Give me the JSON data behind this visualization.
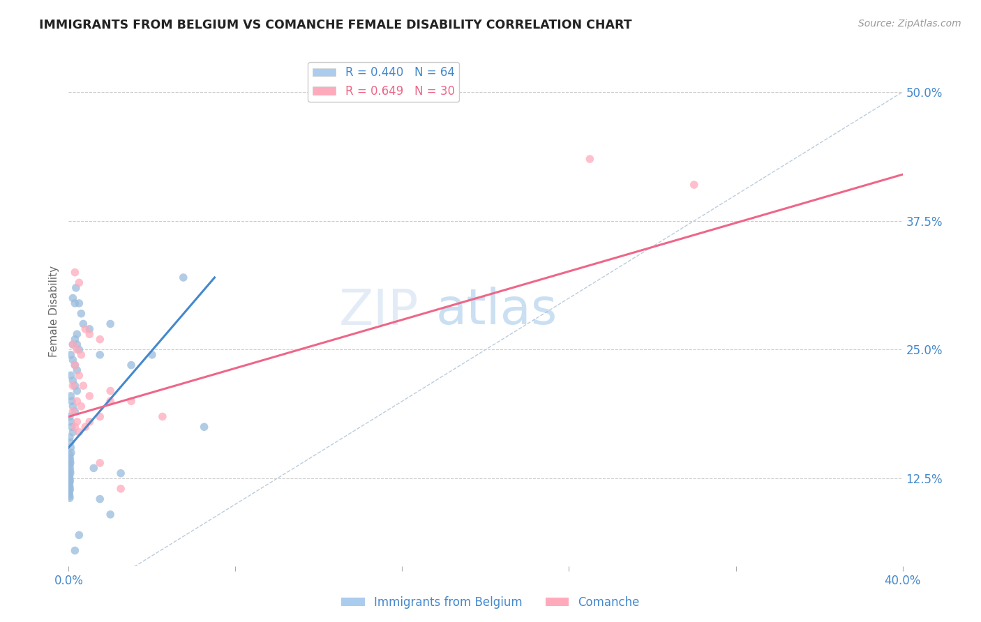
{
  "title": "IMMIGRANTS FROM BELGIUM VS COMANCHE FEMALE DISABILITY CORRELATION CHART",
  "source": "Source: ZipAtlas.com",
  "ylabel": "Female Disability",
  "right_yticks": [
    0.125,
    0.25,
    0.375,
    0.5
  ],
  "right_ytick_labels": [
    "12.5%",
    "25.0%",
    "37.5%",
    "50.0%"
  ],
  "legend1_label": "R = 0.440   N = 64",
  "legend2_label": "R = 0.649   N = 30",
  "legend_color1": "#aaccee",
  "legend_color2": "#ffaabb",
  "blue_color": "#99bbdd",
  "pink_color": "#ffaabb",
  "blue_line_color": "#4488cc",
  "pink_line_color": "#ee6688",
  "diagonal_color": "#bbccdd",
  "watermark_zip": "ZIP",
  "watermark_atlas": "atlas",
  "title_fontsize": 12.5,
  "axis_label_color": "#4488cc",
  "blue_scatter": [
    [
      0.2,
      0.3
    ],
    [
      0.3,
      0.295
    ],
    [
      0.35,
      0.31
    ],
    [
      0.4,
      0.265
    ],
    [
      0.5,
      0.295
    ],
    [
      0.6,
      0.285
    ],
    [
      0.7,
      0.275
    ],
    [
      0.2,
      0.255
    ],
    [
      0.3,
      0.26
    ],
    [
      0.4,
      0.255
    ],
    [
      0.5,
      0.25
    ],
    [
      0.1,
      0.245
    ],
    [
      0.2,
      0.24
    ],
    [
      0.3,
      0.235
    ],
    [
      0.4,
      0.23
    ],
    [
      0.1,
      0.225
    ],
    [
      0.2,
      0.22
    ],
    [
      0.3,
      0.215
    ],
    [
      0.4,
      0.21
    ],
    [
      0.1,
      0.205
    ],
    [
      0.15,
      0.2
    ],
    [
      0.2,
      0.195
    ],
    [
      0.3,
      0.19
    ],
    [
      0.05,
      0.185
    ],
    [
      0.1,
      0.18
    ],
    [
      0.15,
      0.175
    ],
    [
      0.2,
      0.17
    ],
    [
      0.05,
      0.165
    ],
    [
      0.08,
      0.16
    ],
    [
      0.1,
      0.155
    ],
    [
      0.12,
      0.15
    ],
    [
      0.05,
      0.148
    ],
    [
      0.06,
      0.145
    ],
    [
      0.07,
      0.142
    ],
    [
      0.08,
      0.14
    ],
    [
      0.05,
      0.138
    ],
    [
      0.06,
      0.135
    ],
    [
      0.07,
      0.132
    ],
    [
      0.08,
      0.13
    ],
    [
      0.03,
      0.128
    ],
    [
      0.04,
      0.126
    ],
    [
      0.05,
      0.124
    ],
    [
      0.06,
      0.122
    ],
    [
      0.03,
      0.12
    ],
    [
      0.04,
      0.118
    ],
    [
      0.05,
      0.116
    ],
    [
      0.06,
      0.114
    ],
    [
      0.02,
      0.112
    ],
    [
      0.03,
      0.11
    ],
    [
      0.04,
      0.108
    ],
    [
      0.05,
      0.106
    ],
    [
      1.0,
      0.27
    ],
    [
      1.5,
      0.245
    ],
    [
      2.0,
      0.275
    ],
    [
      3.0,
      0.235
    ],
    [
      4.0,
      0.245
    ],
    [
      5.5,
      0.32
    ],
    [
      6.5,
      0.175
    ],
    [
      1.2,
      0.135
    ],
    [
      2.5,
      0.13
    ],
    [
      1.5,
      0.105
    ],
    [
      2.0,
      0.09
    ],
    [
      0.5,
      0.07
    ],
    [
      0.3,
      0.055
    ]
  ],
  "pink_scatter": [
    [
      0.3,
      0.325
    ],
    [
      0.5,
      0.315
    ],
    [
      0.8,
      0.27
    ],
    [
      1.0,
      0.265
    ],
    [
      1.5,
      0.26
    ],
    [
      0.2,
      0.255
    ],
    [
      0.4,
      0.25
    ],
    [
      0.6,
      0.245
    ],
    [
      0.3,
      0.235
    ],
    [
      0.5,
      0.225
    ],
    [
      0.7,
      0.215
    ],
    [
      0.2,
      0.215
    ],
    [
      0.4,
      0.2
    ],
    [
      0.6,
      0.195
    ],
    [
      1.0,
      0.205
    ],
    [
      1.5,
      0.185
    ],
    [
      2.0,
      0.2
    ],
    [
      0.3,
      0.175
    ],
    [
      0.5,
      0.17
    ],
    [
      1.0,
      0.18
    ],
    [
      0.2,
      0.19
    ],
    [
      0.4,
      0.18
    ],
    [
      0.8,
      0.175
    ],
    [
      1.5,
      0.14
    ],
    [
      2.5,
      0.115
    ],
    [
      4.5,
      0.185
    ],
    [
      3.0,
      0.2
    ],
    [
      2.0,
      0.21
    ],
    [
      25.0,
      0.435
    ],
    [
      30.0,
      0.41
    ]
  ],
  "blue_line": [
    [
      0.0,
      0.155
    ],
    [
      7.0,
      0.32
    ]
  ],
  "pink_line": [
    [
      0.0,
      0.185
    ],
    [
      40.0,
      0.42
    ]
  ],
  "diagonal_line": [
    [
      0.0,
      0.0
    ],
    [
      40.0,
      0.5
    ]
  ],
  "xlim": [
    0.0,
    40.0
  ],
  "ylim": [
    0.04,
    0.535
  ]
}
